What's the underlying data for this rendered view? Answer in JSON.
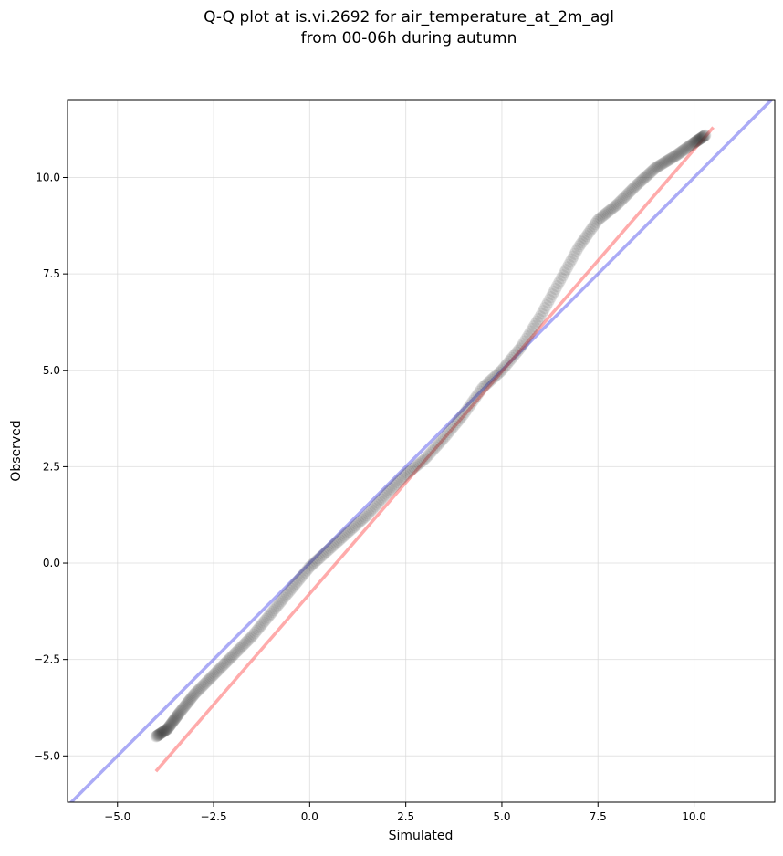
{
  "chart_data": {
    "type": "scatter",
    "title_lines": [
      "Q-Q plot at is.vi.2692 for air_temperature_at_2m_agl",
      "from 00-06h during autumn"
    ],
    "xlabel": "Simulated",
    "ylabel": "Observed",
    "xlim": [
      -6.3,
      12.1
    ],
    "ylim": [
      -6.2,
      12.0
    ],
    "x_ticks": [
      -5.0,
      -2.5,
      0.0,
      2.5,
      5.0,
      7.5,
      10.0
    ],
    "x_tick_labels": [
      "−5.0",
      "−2.5",
      "0.0",
      "2.5",
      "5.0",
      "7.5",
      "10.0"
    ],
    "y_ticks": [
      -5.0,
      -2.5,
      0.0,
      2.5,
      5.0,
      7.5,
      10.0
    ],
    "y_tick_labels": [
      "−5.0",
      "−2.5",
      "0.0",
      "2.5",
      "5.0",
      "7.5",
      "10.0"
    ],
    "grid": true,
    "colors": {
      "points": "#333333",
      "identity_line": "#6666ee",
      "fit_line": "#ff6666"
    },
    "identity_line": {
      "x": [
        -6.3,
        12.1
      ],
      "y": [
        -6.3,
        12.1
      ]
    },
    "fit_line": {
      "x": [
        -4.0,
        10.5
      ],
      "y": [
        -5.4,
        11.3
      ]
    },
    "quantile_curve": {
      "x": [
        -4.0,
        -3.7,
        -3.4,
        -3.0,
        -2.5,
        -2.0,
        -1.5,
        -1.0,
        -0.5,
        0.0,
        0.5,
        1.0,
        1.5,
        2.0,
        2.5,
        3.0,
        3.5,
        4.0,
        4.5,
        5.0,
        5.5,
        6.0,
        6.5,
        7.0,
        7.5,
        8.0,
        8.5,
        9.0,
        9.5,
        10.0,
        10.3
      ],
      "y": [
        -4.5,
        -4.3,
        -3.9,
        -3.4,
        -2.9,
        -2.4,
        -1.9,
        -1.3,
        -0.7,
        -0.1,
        0.35,
        0.8,
        1.25,
        1.8,
        2.3,
        2.7,
        3.25,
        3.85,
        4.55,
        5.0,
        5.6,
        6.4,
        7.3,
        8.2,
        8.9,
        9.3,
        9.8,
        10.25,
        10.55,
        10.9,
        11.1
      ]
    },
    "n_points": 420
  }
}
